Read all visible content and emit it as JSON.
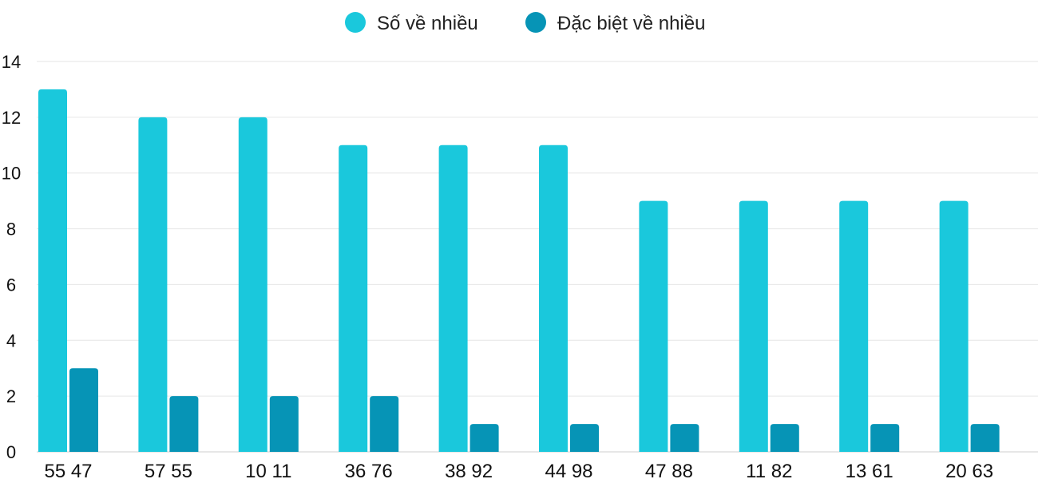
{
  "chart_data": {
    "type": "bar",
    "categories": [
      "55 47",
      "57 55",
      "10 11",
      "36 76",
      "38 92",
      "44 98",
      "47 88",
      "11 82",
      "13 61",
      "20 63"
    ],
    "series": [
      {
        "name": "Số về nhiều",
        "color": "#1ac8dc",
        "values": [
          13,
          12,
          12,
          11,
          11,
          11,
          9,
          9,
          9,
          9
        ]
      },
      {
        "name": "Đặc biệt về nhiều",
        "color": "#0694b6",
        "values": [
          3,
          2,
          2,
          2,
          1,
          1,
          1,
          1,
          1,
          1
        ]
      }
    ],
    "ylim": [
      0,
      14
    ],
    "yticks": [
      0,
      2,
      4,
      6,
      8,
      10,
      12,
      14
    ],
    "grid": true,
    "legend": "top-center"
  }
}
